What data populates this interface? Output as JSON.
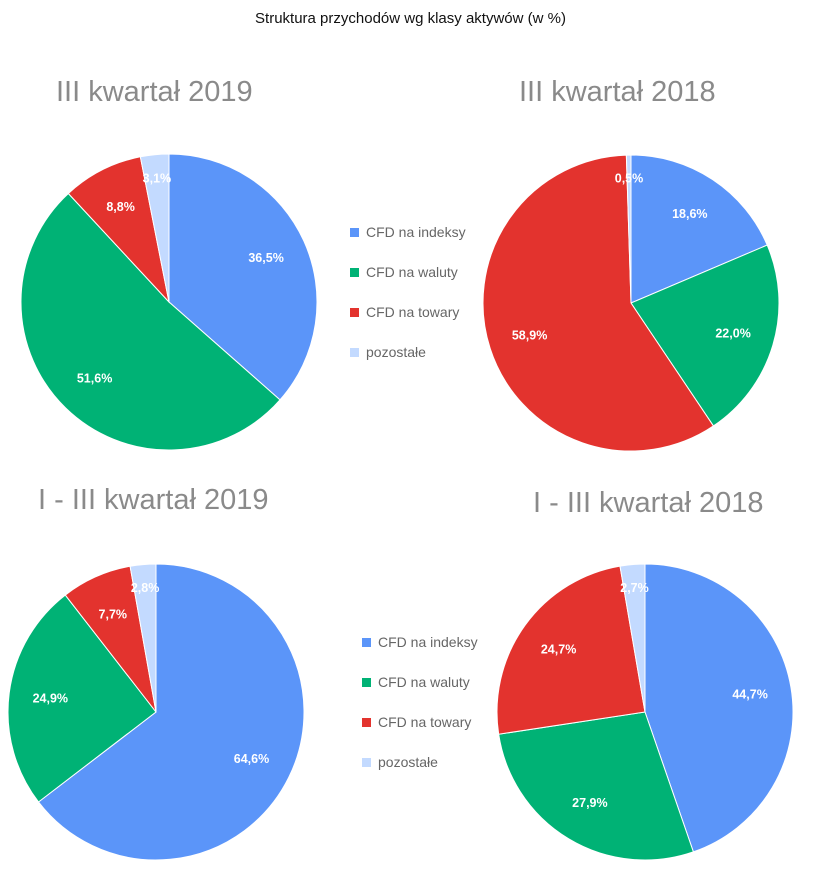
{
  "title": "Struktura przychodów wg klasy aktywów (w %)",
  "colors": {
    "CFD na indeksy": "#5b95f9",
    "CFD na waluty": "#00b275",
    "CFD na towary": "#e3332e",
    "pozostałe": "#c3daff"
  },
  "legends": [
    {
      "items": [
        "CFD na indeksy",
        "CFD na waluty",
        "CFD na towary",
        "pozostałe"
      ]
    },
    {
      "items": [
        "CFD na indeksy",
        "CFD na waluty",
        "CFD na towary",
        "pozostałe"
      ]
    }
  ],
  "chart_data": [
    {
      "type": "pie",
      "title": "III kwartał 2019",
      "categories": [
        "CFD na indeksy",
        "CFD na waluty",
        "CFD na towary",
        "pozostałe"
      ],
      "values": [
        36.5,
        51.6,
        8.8,
        3.1
      ],
      "labels": [
        "36,5%",
        "51,6%",
        "8,8%",
        "3,1%"
      ]
    },
    {
      "type": "pie",
      "title": "III kwartał 2018",
      "categories": [
        "CFD na indeksy",
        "CFD na waluty",
        "CFD na towary",
        "pozostałe"
      ],
      "values": [
        18.6,
        22.0,
        58.9,
        0.5
      ],
      "labels": [
        "18,6%",
        "22,0%",
        "58,9%",
        "0,5%"
      ]
    },
    {
      "type": "pie",
      "title": "I - III kwartał 2019",
      "categories": [
        "CFD na indeksy",
        "CFD na waluty",
        "CFD na towary",
        "pozostałe"
      ],
      "values": [
        64.6,
        24.9,
        7.7,
        2.8
      ],
      "labels": [
        "64,6%",
        "24,9%",
        "7,7%",
        "2,8%"
      ]
    },
    {
      "type": "pie",
      "title": "I - III kwartał 2018",
      "categories": [
        "CFD na indeksy",
        "CFD na waluty",
        "CFD na towary",
        "pozostałe"
      ],
      "values": [
        44.7,
        27.9,
        24.7,
        2.7
      ],
      "labels": [
        "44,7%",
        "27,9%",
        "24,7%",
        "2,7%"
      ]
    }
  ]
}
